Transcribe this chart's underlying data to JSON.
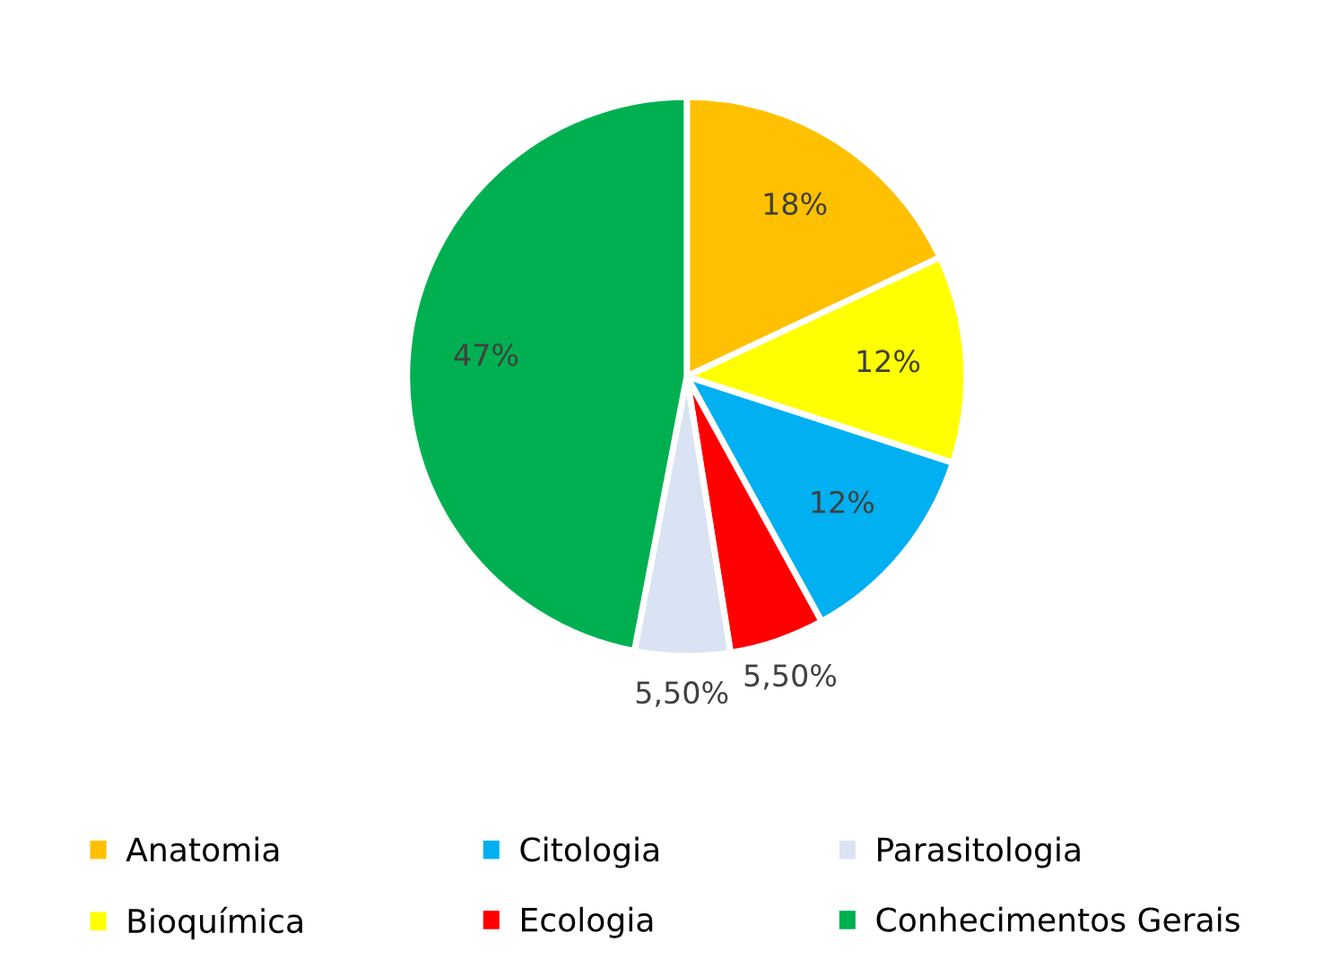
{
  "chart_data": {
    "type": "pie",
    "categories": [
      "Anatomia",
      "Bioquímica",
      "Citologia",
      "Ecologia",
      "Parasitologia",
      "Conhecimentos Gerais"
    ],
    "values": [
      18,
      12,
      12,
      5.5,
      5.5,
      47
    ],
    "value_labels": [
      "18%",
      "12%",
      "12%",
      "5,50%",
      "5,50%",
      "47%"
    ],
    "colors": [
      "#ffc000",
      "#ffff00",
      "#00b0f0",
      "#ff0000",
      "#dae3f3",
      "#00b050"
    ],
    "legend": "bottom"
  }
}
